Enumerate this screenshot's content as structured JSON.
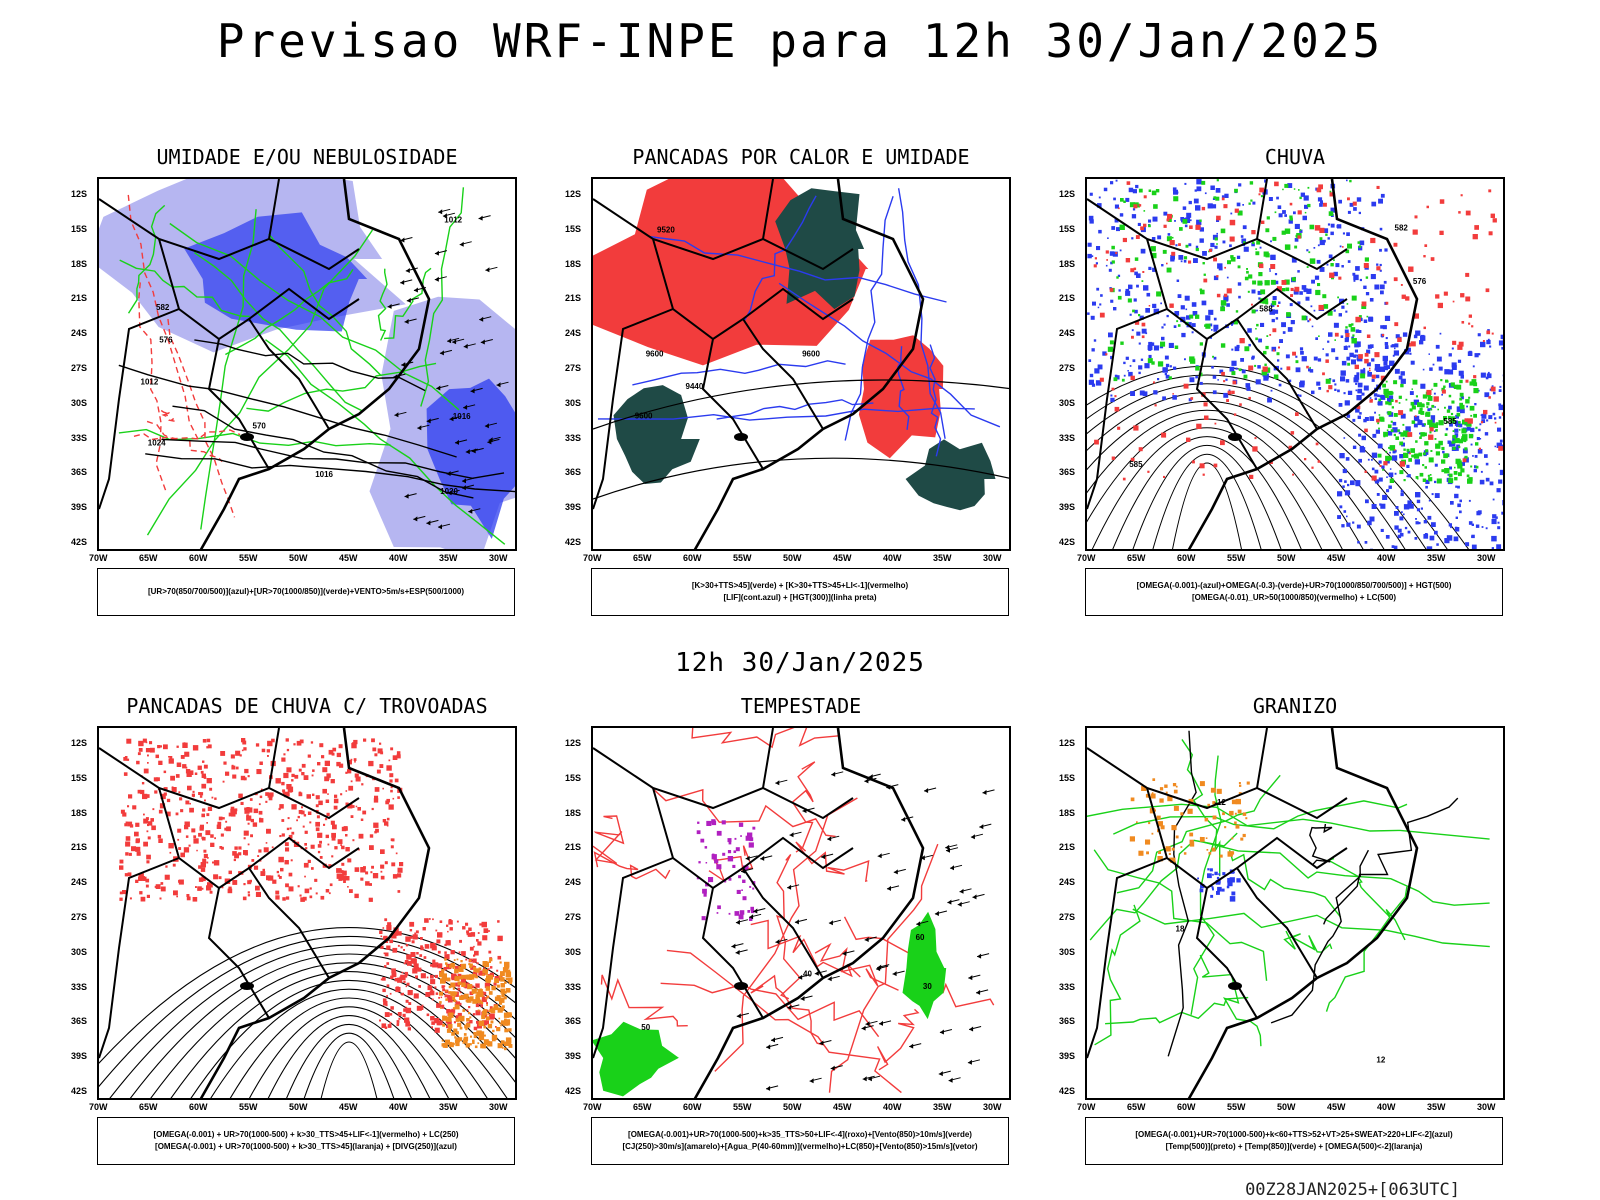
{
  "header": {
    "title": "Previsao WRF-INPE  para 12h 30/Jan/2025"
  },
  "mid_time": "12h 30/Jan/2025",
  "footer": "00Z28JAN2025+[063UTC]",
  "axes": {
    "lat_labels": [
      "12S",
      "15S",
      "18S",
      "21S",
      "24S",
      "27S",
      "30S",
      "33S",
      "36S",
      "39S",
      "42S"
    ],
    "lon_labels": [
      "70W",
      "65W",
      "60W",
      "55W",
      "50W",
      "45W",
      "40W",
      "35W",
      "30W"
    ]
  },
  "colors": {
    "blue": "#2b3bef",
    "light_blue": "#a9a9ee",
    "green": "#19d119",
    "red": "#f23c3c",
    "dark_teal": "#1f4a46",
    "orange": "#f08a20",
    "purple": "#b020c0"
  },
  "panels": [
    {
      "title": "UMIDADE E/OU NEBULOSIDADE",
      "legend": [
        "[UR>70(850/700/500)](azul)+[UR>70(1000/850)](verde)+VENTO>5m/s+ESP(500/1000)"
      ],
      "contour_labels": [
        "1012",
        "1012",
        "1016",
        "1016",
        "1020",
        "1024",
        "570",
        "576",
        "582"
      ]
    },
    {
      "title": "PANCADAS POR CALOR E UMIDADE",
      "legend": [
        "[K>30+TTS>45](verde) + [K>30+TTS>45+LI<-1](vermelho)",
        "[LIF](cont.azul) + [HGT(300)](linha preta)"
      ],
      "contour_labels": [
        "9600",
        "9600",
        "9600",
        "9520",
        "9440"
      ]
    },
    {
      "title": "CHUVA",
      "legend": [
        "[OMEGA(-0.001)-(azul)+OMEGA(-0.3)-(verde)+UR>70(1000/850/700/500)] + HGT(500)",
        "[OMEGA(-0.01)_UR>50(1000/850)(vermelho) + LC(500)"
      ],
      "contour_labels": [
        "585",
        "585",
        "588",
        "582",
        "576"
      ]
    },
    {
      "title": "PANCADAS DE CHUVA C/ TROVOADAS",
      "legend": [
        "[OMEGA(-0.001) + UR>70(1000-500) + k>30_TTS>45+LIF<-1](vermelho) + LC(250)",
        "[OMEGA(-0.001) + UR>70(1000-500) + k>30_TTS>45](laranja) + [DIVG(250)](azul)"
      ],
      "contour_labels": []
    },
    {
      "title": "TEMPESTADE",
      "legend": [
        "[OMEGA(-0.001)+UR>70(1000-500)+k>35_TTS>50+LIF<-4](roxo)+[Vento(850)>10m/s](verde)",
        "[CJ(250)>30m/s](amarelo)+[Agua_P(40-60mm)](vermelho)+LC(850)+[Vento(850)>15m/s](vetor)"
      ],
      "contour_labels": [
        "40",
        "50",
        "30",
        "60"
      ]
    },
    {
      "title": "GRANIZO",
      "legend": [
        "[OMEGA(-0.001)+UR>70(1000-500)+k<60+TTS>52+VT>25+SWEAT>220+LIF<-2](azul)",
        "[Temp(500)](preto) + [Temp(850)](verde) + [OMEGA(500)<-2](laranja)"
      ],
      "contour_labels": [
        "12",
        "18",
        "-12"
      ]
    }
  ]
}
